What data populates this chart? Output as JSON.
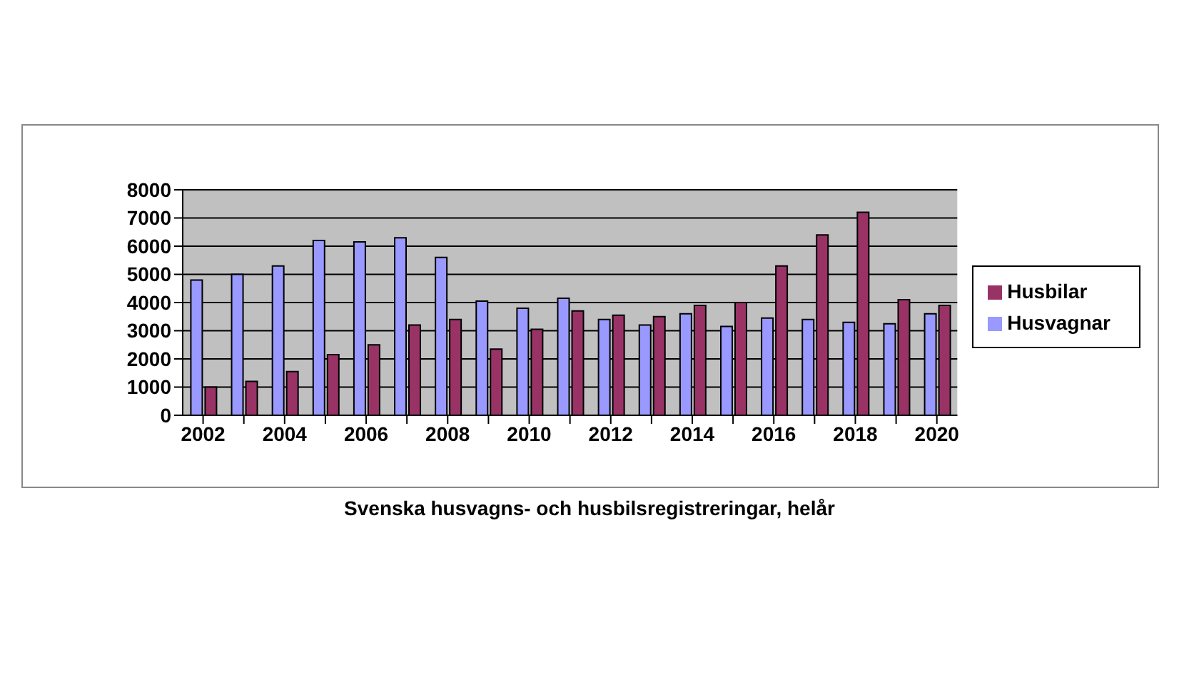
{
  "chart_data": {
    "type": "bar",
    "title": "Svenska husvagns- och husbilsregistreringar, helår",
    "categories": [
      "2002",
      null,
      "2004",
      null,
      "2006",
      null,
      "2008",
      null,
      "2010",
      null,
      "2012",
      null,
      "2014",
      null,
      "2016",
      null,
      "2018",
      null,
      "2020"
    ],
    "series": [
      {
        "name": "Husvagnar",
        "color": "#9999ff",
        "values": [
          4800,
          5000,
          5300,
          6200,
          6150,
          6300,
          5600,
          4050,
          3800,
          4150,
          3400,
          3200,
          3600,
          3150,
          3450,
          3400,
          3300,
          3250,
          3600
        ]
      },
      {
        "name": "Husbilar",
        "color": "#993366",
        "values": [
          1000,
          1200,
          1550,
          2150,
          2500,
          3200,
          3400,
          2350,
          3050,
          3700,
          3550,
          3500,
          3900,
          4000,
          5300,
          6400,
          7200,
          4100,
          3900
        ]
      }
    ],
    "ylim": [
      0,
      8000
    ],
    "yticks": [
      0,
      1000,
      2000,
      3000,
      4000,
      5000,
      6000,
      7000,
      8000
    ],
    "grid": "y",
    "legend": "right"
  }
}
